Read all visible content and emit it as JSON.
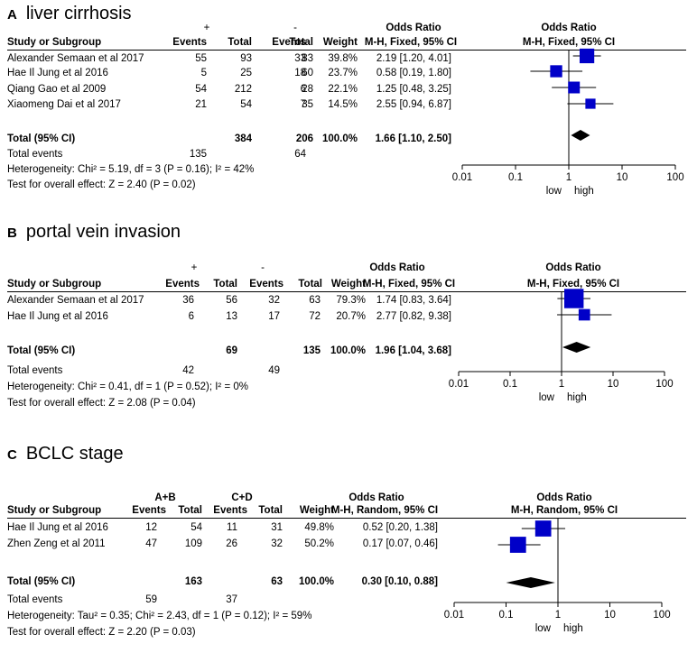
{
  "panels": {
    "a": {
      "letter": "A",
      "title": "liver cirrhosis",
      "group1": "+",
      "group2": "-",
      "hdr": {
        "study": "Study or Subgroup",
        "events": "Events",
        "total": "Total",
        "weight": "Weight",
        "or_top": "Odds Ratio",
        "or_sub": "M-H, Fixed, 95% CI"
      },
      "rows": [
        {
          "study": "Alexander Semaan et al 2017",
          "e1": "55",
          "t1": "93",
          "e2": "33",
          "t2": "83",
          "w": "39.8%",
          "ci": "2.19 [1.20, 4.01]"
        },
        {
          "study": "Hae Il Jung et al 2016",
          "e1": "5",
          "t1": "25",
          "e2": "18",
          "t2": "60",
          "w": "23.7%",
          "ci": "0.58 [0.19, 1.80]"
        },
        {
          "study": "Qiang Gao et al 2009",
          "e1": "54",
          "t1": "212",
          "e2": "6",
          "t2": "28",
          "w": "22.1%",
          "ci": "1.25 [0.48, 3.25]"
        },
        {
          "study": "Xiaomeng Dai et al 2017",
          "e1": "21",
          "t1": "54",
          "e2": "7",
          "t2": "35",
          "w": "14.5%",
          "ci": "2.55 [0.94, 6.87]"
        }
      ],
      "total": {
        "label": "Total (95% CI)",
        "t1": "384",
        "t2": "206",
        "w": "100.0%",
        "ci": "1.66 [1.10, 2.50]"
      },
      "events": {
        "label": "Total events",
        "e1": "135",
        "e2": "64"
      },
      "het": "Heterogeneity: Chi² = 5.19, df = 3 (P = 0.16); I² = 42%",
      "test": "Test for overall effect: Z = 2.40 (P = 0.02)",
      "axis": {
        "ticks": [
          "0.01",
          "0.1",
          "1",
          "10",
          "100"
        ],
        "low": "low",
        "high": "high"
      }
    },
    "b": {
      "letter": "B",
      "title": "portal vein invasion",
      "group1": "+",
      "group2": "-",
      "hdr": {
        "study": "Study or Subgroup",
        "events": "Events",
        "total": "Total",
        "weight": "Weight",
        "or_top": "Odds Ratio",
        "or_sub": "M-H, Fixed, 95% CI"
      },
      "rows": [
        {
          "study": "Alexander Semaan et al 2017",
          "e1": "36",
          "t1": "56",
          "e2": "32",
          "t2": "63",
          "w": "79.3%",
          "ci": "1.74 [0.83, 3.64]"
        },
        {
          "study": "Hae Il Jung et al 2016",
          "e1": "6",
          "t1": "13",
          "e2": "17",
          "t2": "72",
          "w": "20.7%",
          "ci": "2.77 [0.82, 9.38]"
        }
      ],
      "total": {
        "label": "Total (95% CI)",
        "t1": "69",
        "t2": "135",
        "w": "100.0%",
        "ci": "1.96 [1.04, 3.68]"
      },
      "events": {
        "label": "Total events",
        "e1": "42",
        "e2": "49"
      },
      "het": "Heterogeneity: Chi² = 0.41, df = 1 (P = 0.52); I² = 0%",
      "test": "Test for overall effect: Z = 2.08 (P = 0.04)",
      "axis": {
        "ticks": [
          "0.01",
          "0.1",
          "1",
          "10",
          "100"
        ],
        "low": "low",
        "high": "high"
      }
    },
    "c": {
      "letter": "C",
      "title": "BCLC stage",
      "group1": "A+B",
      "group2": "C+D",
      "hdr": {
        "study": "Study or Subgroup",
        "events": "Events",
        "total": "Total",
        "weight": "Weight",
        "or_top": "Odds Ratio",
        "or_sub": "M-H, Random, 95% CI"
      },
      "rows": [
        {
          "study": "Hae Il Jung et al 2016",
          "e1": "12",
          "t1": "54",
          "e2": "11",
          "t2": "31",
          "w": "49.8%",
          "ci": "0.52 [0.20, 1.38]"
        },
        {
          "study": "Zhen Zeng et al 2011",
          "e1": "47",
          "t1": "109",
          "e2": "26",
          "t2": "32",
          "w": "50.2%",
          "ci": "0.17 [0.07, 0.46]"
        }
      ],
      "total": {
        "label": "Total (95% CI)",
        "t1": "163",
        "t2": "63",
        "w": "100.0%",
        "ci": "0.30 [0.10, 0.88]"
      },
      "events": {
        "label": "Total events",
        "e1": "59",
        "e2": "37"
      },
      "het": "Heterogeneity: Tau² = 0.35; Chi² = 2.43, df = 1 (P = 0.12); I² = 59%",
      "test": "Test for overall effect: Z = 2.20 (P = 0.03)",
      "axis": {
        "ticks": [
          "0.01",
          "0.1",
          "1",
          "10",
          "100"
        ],
        "low": "low",
        "high": "high"
      }
    }
  },
  "chart_data": [
    {
      "type": "forest",
      "title": "liver cirrhosis",
      "xscale": "log",
      "xlim": [
        0.01,
        100
      ],
      "xticks": [
        0.01,
        0.1,
        1,
        10,
        100
      ],
      "marker_color": "#0000c8",
      "studies": [
        {
          "name": "Alexander Semaan et al 2017",
          "or": 2.19,
          "lo": 1.2,
          "hi": 4.01,
          "weight": 39.8
        },
        {
          "name": "Hae Il Jung et al 2016",
          "or": 0.58,
          "lo": 0.19,
          "hi": 1.8,
          "weight": 23.7
        },
        {
          "name": "Qiang Gao et al 2009",
          "or": 1.25,
          "lo": 0.48,
          "hi": 3.25,
          "weight": 22.1
        },
        {
          "name": "Xiaomeng Dai et al 2017",
          "or": 2.55,
          "lo": 0.94,
          "hi": 6.87,
          "weight": 14.5
        }
      ],
      "pooled": {
        "or": 1.66,
        "lo": 1.1,
        "hi": 2.5
      }
    },
    {
      "type": "forest",
      "title": "portal vein invasion",
      "xscale": "log",
      "xlim": [
        0.01,
        100
      ],
      "xticks": [
        0.01,
        0.1,
        1,
        10,
        100
      ],
      "marker_color": "#0000c8",
      "studies": [
        {
          "name": "Alexander Semaan et al 2017",
          "or": 1.74,
          "lo": 0.83,
          "hi": 3.64,
          "weight": 79.3
        },
        {
          "name": "Hae Il Jung et al 2016",
          "or": 2.77,
          "lo": 0.82,
          "hi": 9.38,
          "weight": 20.7
        }
      ],
      "pooled": {
        "or": 1.96,
        "lo": 1.04,
        "hi": 3.68
      }
    },
    {
      "type": "forest",
      "title": "BCLC stage",
      "xscale": "log",
      "xlim": [
        0.01,
        100
      ],
      "xticks": [
        0.01,
        0.1,
        1,
        10,
        100
      ],
      "marker_color": "#0000c8",
      "studies": [
        {
          "name": "Hae Il Jung et al 2016",
          "or": 0.52,
          "lo": 0.2,
          "hi": 1.38,
          "weight": 49.8
        },
        {
          "name": "Zhen Zeng et al 2011",
          "or": 0.17,
          "lo": 0.07,
          "hi": 0.46,
          "weight": 50.2
        }
      ],
      "pooled": {
        "or": 0.3,
        "lo": 0.1,
        "hi": 0.88
      }
    }
  ]
}
